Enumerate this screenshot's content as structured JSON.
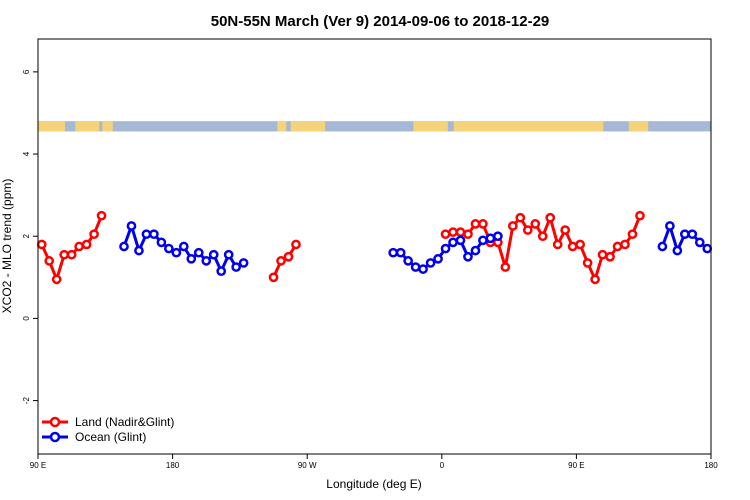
{
  "chart_data": {
    "type": "line",
    "title": "50N-55N March (Ver 9)   2014-09-06 to 2018-12-29",
    "xlabel": "Longitude (deg E)",
    "ylabel": "XCO2 - MLO trend (ppm)",
    "xlim": [
      90,
      540
    ],
    "ylim": [
      -3.3,
      6.8
    ],
    "x_ticks": [
      {
        "value": 90,
        "label": "90 E"
      },
      {
        "value": 180,
        "label": "180"
      },
      {
        "value": 270,
        "label": "90 W"
      },
      {
        "value": 360,
        "label": "0"
      },
      {
        "value": 450,
        "label": "90 E"
      },
      {
        "value": 540,
        "label": "180"
      }
    ],
    "y_ticks": [
      {
        "value": -2,
        "label": "-2"
      },
      {
        "value": 0,
        "label": "0"
      },
      {
        "value": 2,
        "label": "2"
      },
      {
        "value": 4,
        "label": "4"
      },
      {
        "value": 6,
        "label": "6"
      }
    ],
    "legend_position": "bottom-left",
    "land_ocean_band": {
      "y_range": [
        4.55,
        4.8
      ],
      "land_color": "#f5d37a",
      "ocean_color": "#a5b8d6"
    },
    "series": [
      {
        "name": "Land (Nadir&Glint)",
        "color": "#ff0000",
        "segments": [
          [
            [
              92.5,
              1.8
            ],
            [
              97.5,
              1.4
            ],
            [
              102.5,
              0.95
            ],
            [
              107.5,
              1.55
            ],
            [
              112.5,
              1.55
            ],
            [
              117.5,
              1.75
            ],
            [
              122.5,
              1.8
            ],
            [
              127.5,
              2.05
            ],
            [
              132.5,
              2.5
            ]
          ],
          [
            [
              247.5,
              1.0
            ],
            [
              252.5,
              1.4
            ],
            [
              257.5,
              1.5
            ],
            [
              262.5,
              1.8
            ]
          ],
          [
            [
              362.5,
              2.05
            ],
            [
              367.5,
              2.1
            ],
            [
              372.5,
              2.1
            ],
            [
              377.5,
              2.05
            ],
            [
              382.5,
              2.3
            ],
            [
              387.5,
              2.3
            ],
            [
              392.5,
              1.85
            ],
            [
              397.5,
              1.85
            ],
            [
              402.5,
              1.25
            ],
            [
              407.5,
              2.25
            ],
            [
              412.5,
              2.45
            ],
            [
              417.5,
              2.15
            ],
            [
              422.5,
              2.3
            ],
            [
              427.5,
              2.0
            ],
            [
              432.5,
              2.45
            ],
            [
              437.5,
              1.8
            ],
            [
              442.5,
              2.15
            ],
            [
              447.5,
              1.75
            ],
            [
              452.5,
              1.8
            ],
            [
              457.5,
              1.35
            ],
            [
              462.5,
              0.95
            ],
            [
              467.5,
              1.55
            ],
            [
              472.5,
              1.5
            ],
            [
              477.5,
              1.75
            ],
            [
              482.5,
              1.8
            ],
            [
              487.5,
              2.05
            ],
            [
              492.5,
              2.5
            ]
          ]
        ]
      },
      {
        "name": "Ocean (Glint)",
        "color": "#0000ee",
        "segments": [
          [
            [
              147.5,
              1.75
            ],
            [
              152.5,
              2.25
            ],
            [
              157.5,
              1.65
            ],
            [
              162.5,
              2.05
            ],
            [
              167.5,
              2.05
            ],
            [
              172.5,
              1.85
            ],
            [
              177.5,
              1.7
            ],
            [
              182.5,
              1.6
            ],
            [
              187.5,
              1.75
            ],
            [
              192.5,
              1.45
            ],
            [
              197.5,
              1.6
            ],
            [
              202.5,
              1.4
            ],
            [
              207.5,
              1.55
            ],
            [
              212.5,
              1.15
            ],
            [
              217.5,
              1.55
            ],
            [
              222.5,
              1.25
            ],
            [
              227.5,
              1.35
            ]
          ],
          [
            [
              327.5,
              1.6
            ],
            [
              332.5,
              1.6
            ],
            [
              337.5,
              1.4
            ],
            [
              342.5,
              1.25
            ],
            [
              347.5,
              1.2
            ],
            [
              352.5,
              1.35
            ],
            [
              357.5,
              1.45
            ],
            [
              362.5,
              1.7
            ],
            [
              367.5,
              1.85
            ],
            [
              372.5,
              1.9
            ],
            [
              377.5,
              1.5
            ],
            [
              382.5,
              1.65
            ],
            [
              387.5,
              1.9
            ],
            [
              392.5,
              1.95
            ],
            [
              397.5,
              2.0
            ]
          ],
          [
            [
              507.5,
              1.75
            ],
            [
              512.5,
              2.25
            ],
            [
              517.5,
              1.65
            ],
            [
              522.5,
              2.05
            ],
            [
              527.5,
              2.05
            ],
            [
              532.5,
              1.85
            ],
            [
              537.5,
              1.7
            ]
          ]
        ]
      }
    ]
  }
}
